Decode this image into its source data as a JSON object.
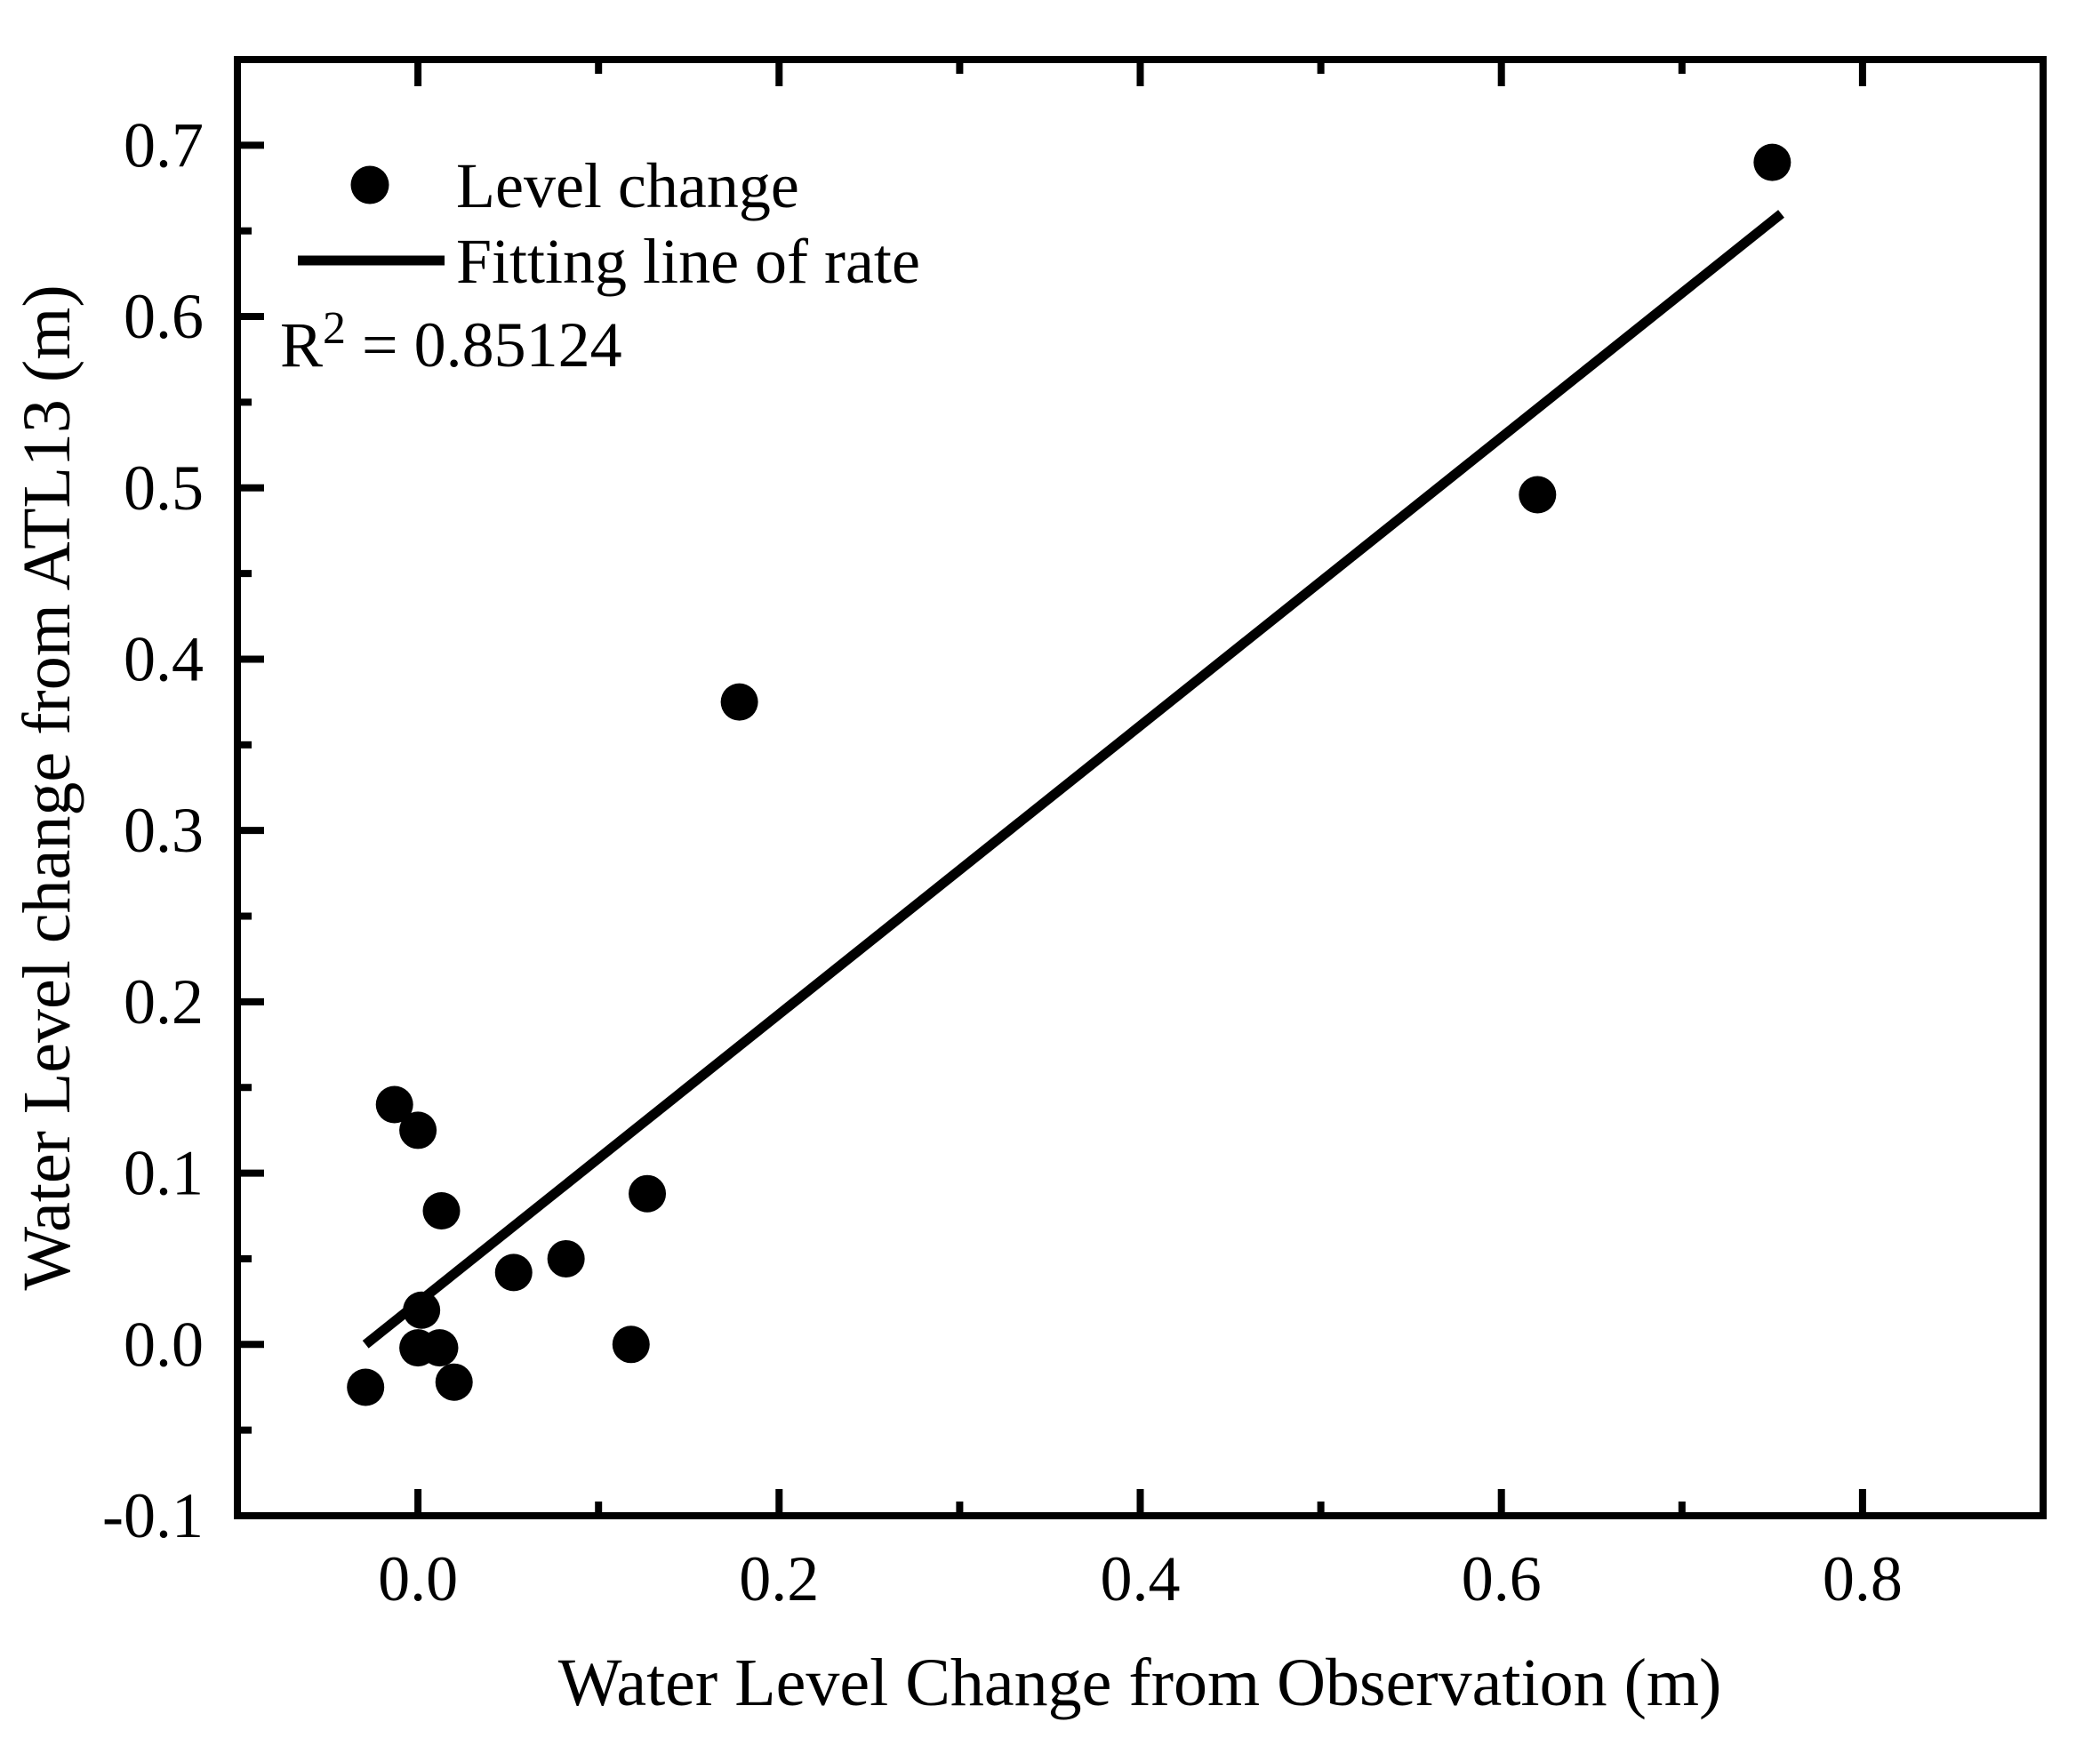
{
  "figure": {
    "background_color": "#ffffff",
    "ink_color": "#000000"
  },
  "chart_data": {
    "type": "scatter",
    "title": "",
    "xlabel": "Water Level Change from Observation (m)",
    "ylabel": "Water Level change from ATL13 (m)",
    "xlim": [
      -0.1,
      0.9
    ],
    "ylim": [
      -0.1,
      0.75
    ],
    "grid": false,
    "legend_position": "top-left-inside",
    "x_major_ticks": [
      0.0,
      0.2,
      0.4,
      0.6,
      0.8
    ],
    "x_major_tick_labels": [
      "0.0",
      "0.2",
      "0.4",
      "0.6",
      "0.8"
    ],
    "x_minor_ticks": [
      0.1,
      0.3,
      0.5,
      0.7
    ],
    "y_major_ticks": [
      -0.1,
      0.0,
      0.1,
      0.2,
      0.3,
      0.4,
      0.5,
      0.6,
      0.7
    ],
    "y_major_tick_labels": [
      "-0.1",
      "0.0",
      "0.1",
      "0.2",
      "0.3",
      "0.4",
      "0.5",
      "0.6",
      "0.7"
    ],
    "y_minor_ticks": [
      -0.05,
      0.05,
      0.15,
      0.25,
      0.35,
      0.45,
      0.55,
      0.65
    ],
    "series": [
      {
        "name": "Level change",
        "kind": "scatter",
        "marker": "filled-circle",
        "color": "#000000",
        "points": [
          [
            -0.029,
            -0.025
          ],
          [
            -0.013,
            0.14
          ],
          [
            0.0,
            0.125
          ],
          [
            0.013,
            0.078
          ],
          [
            0.002,
            0.02
          ],
          [
            0.0,
            -0.002
          ],
          [
            0.012,
            -0.002
          ],
          [
            0.02,
            -0.022
          ],
          [
            0.053,
            0.042
          ],
          [
            0.082,
            0.05
          ],
          [
            0.118,
            0.0
          ],
          [
            0.127,
            0.088
          ],
          [
            0.178,
            0.375
          ],
          [
            0.62,
            0.496
          ],
          [
            0.75,
            0.69
          ]
        ]
      },
      {
        "name": "Fitting line of rate",
        "kind": "line",
        "color": "#000000",
        "from": [
          -0.029,
          0.0
        ],
        "to": [
          0.755,
          0.66
        ]
      }
    ],
    "annotation": {
      "r2_base": "R",
      "r2_exponent": "2",
      "r2_value": " = 0.85124",
      "full_text": "R2 = 0.85124"
    }
  }
}
